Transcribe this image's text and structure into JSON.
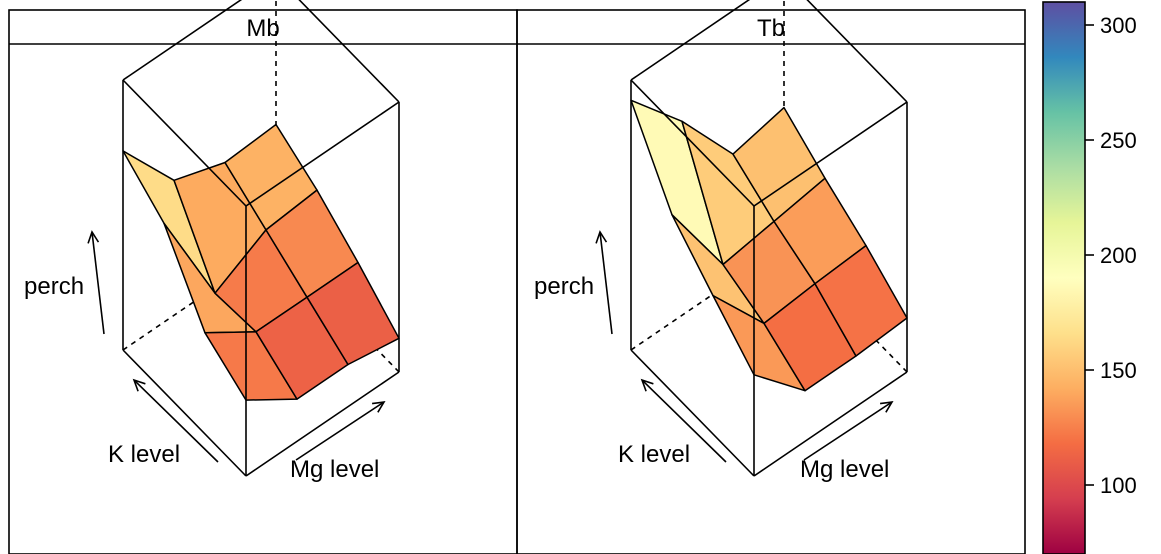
{
  "chart_data": {
    "type": "surface-3d",
    "zlabel": "perch",
    "xlabel": "Mg level",
    "ylabel": "K level",
    "panels": [
      {
        "title": "Mb",
        "grid_note": "rows: K level (back to front); cols: Mg level (left to right)",
        "values": [
          [
            198,
            160,
            150,
            152
          ],
          [
            180,
            118,
            135,
            138
          ],
          [
            140,
            120,
            120,
            120
          ],
          [
            125,
            105,
            105,
            100
          ]
        ]
      },
      {
        "title": "Tb",
        "values": [
          [
            228,
            195,
            155,
            162
          ],
          [
            185,
            135,
            140,
            145
          ],
          [
            162,
            125,
            128,
            130
          ],
          [
            140,
            110,
            110,
            112
          ]
        ]
      }
    ],
    "colorkey": {
      "ticks": [
        100,
        150,
        200,
        250,
        300
      ],
      "range": [
        70,
        310
      ],
      "palette": [
        "#9E0142",
        "#D53E4F",
        "#F46D43",
        "#FDAE61",
        "#FEE08B",
        "#FFFFBF",
        "#E6F598",
        "#ABDDA4",
        "#66C2A5",
        "#3288BD",
        "#5E4FA2"
      ]
    }
  }
}
